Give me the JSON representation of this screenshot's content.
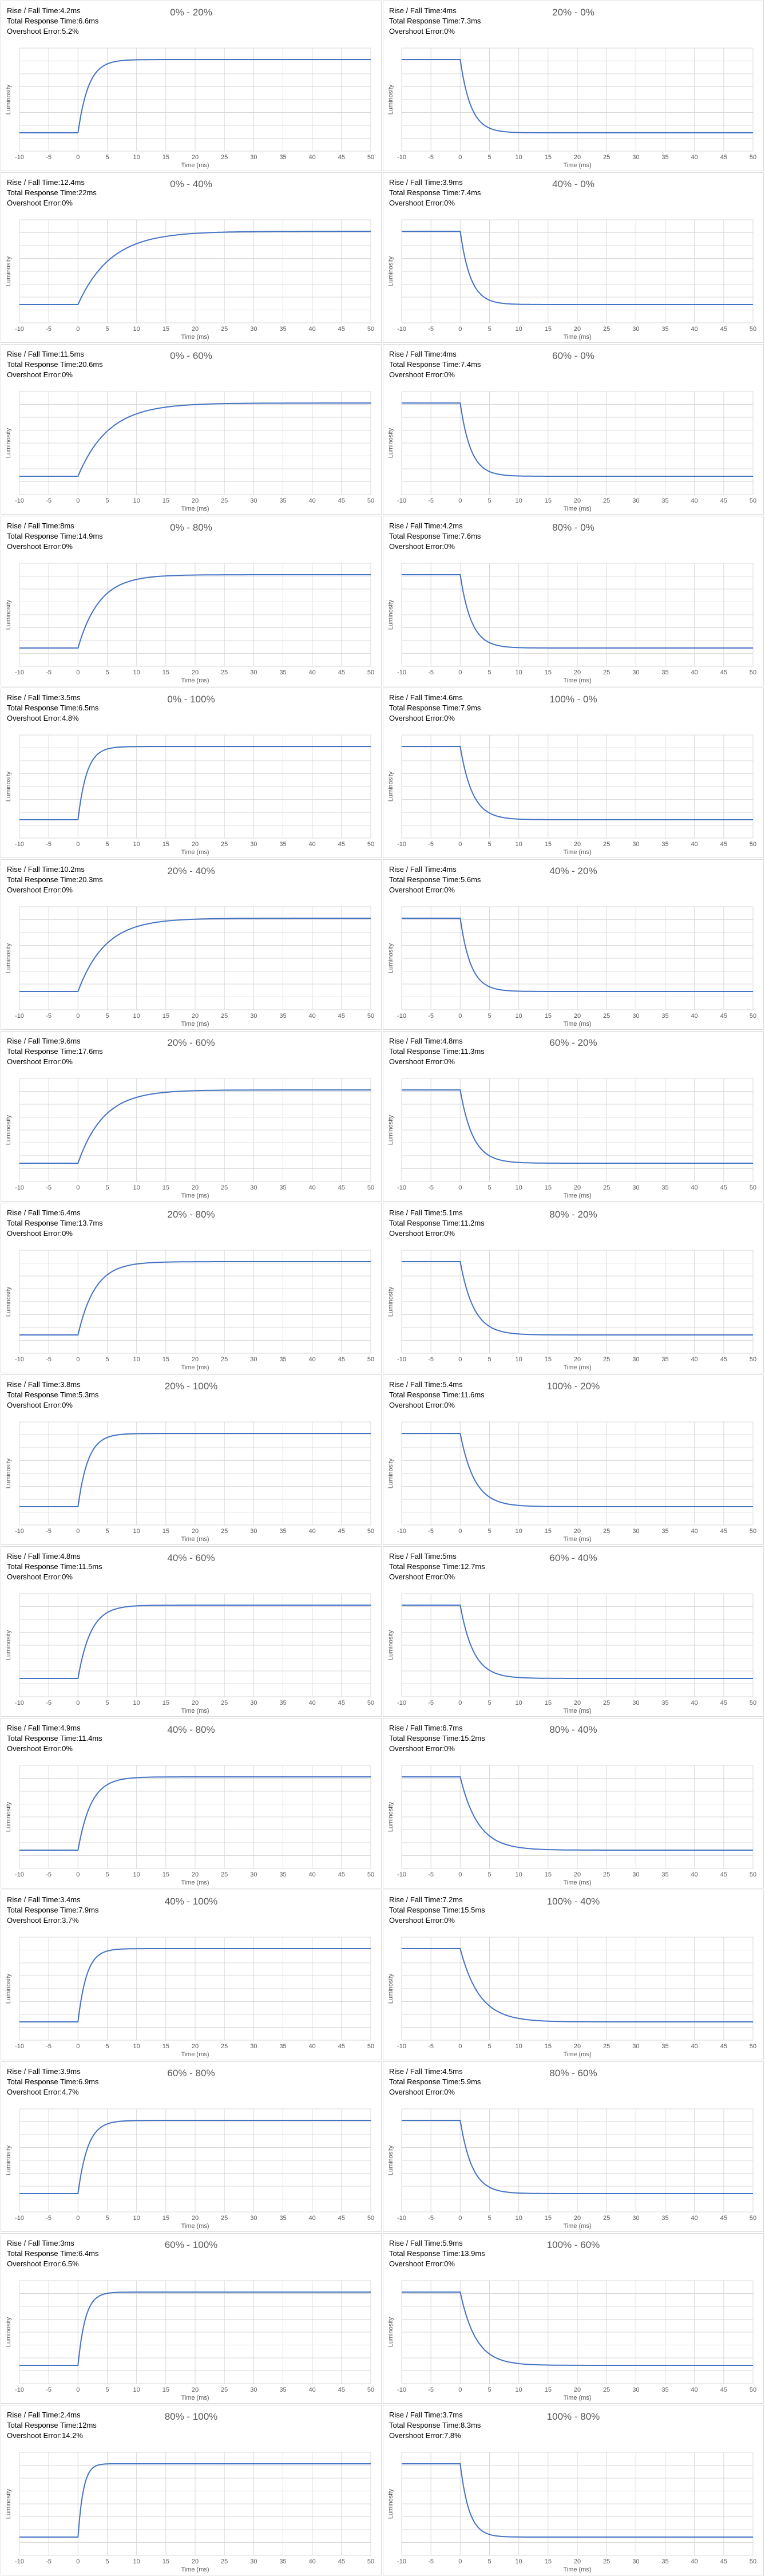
{
  "labels": {
    "rise_fall": "Rise / Fall Time:",
    "total": "Total Response Time:",
    "overshoot": "Overshoot Error:"
  },
  "colors": {
    "line": "#4472c4",
    "grid": "#d9d9d9",
    "tick_text": "#595959",
    "title": "#595959"
  },
  "chart_data": [
    {
      "type": "line",
      "title": "0% - 20%",
      "rise_fall": "4.2ms",
      "total": "6.6ms",
      "overshoot": "5.2%",
      "direction": "rise",
      "xlabel": "Time (ms)",
      "ylabel": "Luminosity",
      "xlim": [
        -10,
        50
      ],
      "x_ticks": [
        -10,
        -5,
        0,
        5,
        10,
        15,
        20,
        25,
        30,
        35,
        40,
        45,
        50
      ]
    },
    {
      "type": "line",
      "title": "20% - 0%",
      "rise_fall": "4ms",
      "total": "7.3ms",
      "overshoot": "0%",
      "direction": "fall",
      "xlabel": "Time (ms)",
      "ylabel": "Luminosity",
      "xlim": [
        -10,
        50
      ],
      "x_ticks": [
        -10,
        -5,
        0,
        5,
        10,
        15,
        20,
        25,
        30,
        35,
        40,
        45,
        50
      ]
    },
    {
      "type": "line",
      "title": "0% - 40%",
      "rise_fall": "12.4ms",
      "total": "22ms",
      "overshoot": "0%",
      "direction": "rise",
      "xlabel": "Time (ms)",
      "ylabel": "Luminosity",
      "xlim": [
        -10,
        50
      ],
      "x_ticks": [
        -10,
        -5,
        0,
        5,
        10,
        15,
        20,
        25,
        30,
        35,
        40,
        45,
        50
      ]
    },
    {
      "type": "line",
      "title": "40% - 0%",
      "rise_fall": "3.9ms",
      "total": "7.4ms",
      "overshoot": "0%",
      "direction": "fall",
      "xlabel": "Time (ms)",
      "ylabel": "Luminosity",
      "xlim": [
        -10,
        50
      ],
      "x_ticks": [
        -10,
        -5,
        0,
        5,
        10,
        15,
        20,
        25,
        30,
        35,
        40,
        45,
        50
      ]
    },
    {
      "type": "line",
      "title": "0% - 60%",
      "rise_fall": "11.5ms",
      "total": "20.6ms",
      "overshoot": "0%",
      "direction": "rise",
      "xlabel": "Time (ms)",
      "ylabel": "Luminosity",
      "xlim": [
        -10,
        50
      ],
      "x_ticks": [
        -10,
        -5,
        0,
        5,
        10,
        15,
        20,
        25,
        30,
        35,
        40,
        45,
        50
      ]
    },
    {
      "type": "line",
      "title": "60% - 0%",
      "rise_fall": "4ms",
      "total": "7.4ms",
      "overshoot": "0%",
      "direction": "fall",
      "xlabel": "Time (ms)",
      "ylabel": "Luminosity",
      "xlim": [
        -10,
        50
      ],
      "x_ticks": [
        -10,
        -5,
        0,
        5,
        10,
        15,
        20,
        25,
        30,
        35,
        40,
        45,
        50
      ]
    },
    {
      "type": "line",
      "title": "0% - 80%",
      "rise_fall": "8ms",
      "total": "14.9ms",
      "overshoot": "0%",
      "direction": "rise",
      "xlabel": "Time (ms)",
      "ylabel": "Luminosity",
      "xlim": [
        -10,
        50
      ],
      "x_ticks": [
        -10,
        -5,
        0,
        5,
        10,
        15,
        20,
        25,
        30,
        35,
        40,
        45,
        50
      ]
    },
    {
      "type": "line",
      "title": "80% - 0%",
      "rise_fall": "4.2ms",
      "total": "7.6ms",
      "overshoot": "0%",
      "direction": "fall",
      "xlabel": "Time (ms)",
      "ylabel": "Luminosity",
      "xlim": [
        -10,
        50
      ],
      "x_ticks": [
        -10,
        -5,
        0,
        5,
        10,
        15,
        20,
        25,
        30,
        35,
        40,
        45,
        50
      ]
    },
    {
      "type": "line",
      "title": "0% - 100%",
      "rise_fall": "3.5ms",
      "total": "6.5ms",
      "overshoot": "4.8%",
      "direction": "rise",
      "xlabel": "Time (ms)",
      "ylabel": "Luminosity",
      "xlim": [
        -10,
        50
      ],
      "x_ticks": [
        -10,
        -5,
        0,
        5,
        10,
        15,
        20,
        25,
        30,
        35,
        40,
        45,
        50
      ]
    },
    {
      "type": "line",
      "title": "100% - 0%",
      "rise_fall": "4.6ms",
      "total": "7.9ms",
      "overshoot": "0%",
      "direction": "fall",
      "xlabel": "Time (ms)",
      "ylabel": "Luminosity",
      "xlim": [
        -10,
        50
      ],
      "x_ticks": [
        -10,
        -5,
        0,
        5,
        10,
        15,
        20,
        25,
        30,
        35,
        40,
        45,
        50
      ]
    },
    {
      "type": "line",
      "title": "20% - 40%",
      "rise_fall": "10.2ms",
      "total": "20.3ms",
      "overshoot": "0%",
      "direction": "rise",
      "xlabel": "Time (ms)",
      "ylabel": "Luminosity",
      "xlim": [
        -10,
        50
      ],
      "x_ticks": [
        -10,
        -5,
        0,
        5,
        10,
        15,
        20,
        25,
        30,
        35,
        40,
        45,
        50
      ]
    },
    {
      "type": "line",
      "title": "40% - 20%",
      "rise_fall": "4ms",
      "total": "5.6ms",
      "overshoot": "0%",
      "direction": "fall",
      "xlabel": "Time (ms)",
      "ylabel": "Luminosity",
      "xlim": [
        -10,
        50
      ],
      "x_ticks": [
        -10,
        -5,
        0,
        5,
        10,
        15,
        20,
        25,
        30,
        35,
        40,
        45,
        50
      ]
    },
    {
      "type": "line",
      "title": "20% - 60%",
      "rise_fall": "9.6ms",
      "total": "17.6ms",
      "overshoot": "0%",
      "direction": "rise",
      "xlabel": "Time (ms)",
      "ylabel": "Luminosity",
      "xlim": [
        -10,
        50
      ],
      "x_ticks": [
        -10,
        -5,
        0,
        5,
        10,
        15,
        20,
        25,
        30,
        35,
        40,
        45,
        50
      ]
    },
    {
      "type": "line",
      "title": "60% - 20%",
      "rise_fall": "4.8ms",
      "total": "11.3ms",
      "overshoot": "0%",
      "direction": "fall",
      "xlabel": "Time (ms)",
      "ylabel": "Luminosity",
      "xlim": [
        -10,
        50
      ],
      "x_ticks": [
        -10,
        -5,
        0,
        5,
        10,
        15,
        20,
        25,
        30,
        35,
        40,
        45,
        50
      ]
    },
    {
      "type": "line",
      "title": "20% - 80%",
      "rise_fall": "6.4ms",
      "total": "13.7ms",
      "overshoot": "0%",
      "direction": "rise",
      "xlabel": "Time (ms)",
      "ylabel": "Luminosity",
      "xlim": [
        -10,
        50
      ],
      "x_ticks": [
        -10,
        -5,
        0,
        5,
        10,
        15,
        20,
        25,
        30,
        35,
        40,
        45,
        50
      ]
    },
    {
      "type": "line",
      "title": "80% - 20%",
      "rise_fall": "5.1ms",
      "total": "11.2ms",
      "overshoot": "0%",
      "direction": "fall",
      "xlabel": "Time (ms)",
      "ylabel": "Luminosity",
      "xlim": [
        -10,
        50
      ],
      "x_ticks": [
        -10,
        -5,
        0,
        5,
        10,
        15,
        20,
        25,
        30,
        35,
        40,
        45,
        50
      ]
    },
    {
      "type": "line",
      "title": "20% - 100%",
      "rise_fall": "3.8ms",
      "total": "5.3ms",
      "overshoot": "0%",
      "direction": "rise",
      "xlabel": "Time (ms)",
      "ylabel": "Luminosity",
      "xlim": [
        -10,
        50
      ],
      "x_ticks": [
        -10,
        -5,
        0,
        5,
        10,
        15,
        20,
        25,
        30,
        35,
        40,
        45,
        50
      ]
    },
    {
      "type": "line",
      "title": "100% - 20%",
      "rise_fall": "5.4ms",
      "total": "11.6ms",
      "overshoot": "0%",
      "direction": "fall",
      "xlabel": "Time (ms)",
      "ylabel": "Luminosity",
      "xlim": [
        -10,
        50
      ],
      "x_ticks": [
        -10,
        -5,
        0,
        5,
        10,
        15,
        20,
        25,
        30,
        35,
        40,
        45,
        50
      ]
    },
    {
      "type": "line",
      "title": "40% - 60%",
      "rise_fall": "4.8ms",
      "total": "11.5ms",
      "overshoot": "0%",
      "direction": "rise",
      "xlabel": "Time (ms)",
      "ylabel": "Luminosity",
      "xlim": [
        -10,
        50
      ],
      "x_ticks": [
        -10,
        -5,
        0,
        5,
        10,
        15,
        20,
        25,
        30,
        35,
        40,
        45,
        50
      ]
    },
    {
      "type": "line",
      "title": "60% - 40%",
      "rise_fall": "5ms",
      "total": "12.7ms",
      "overshoot": "0%",
      "direction": "fall",
      "xlabel": "Time (ms)",
      "ylabel": "Luminosity",
      "xlim": [
        -10,
        50
      ],
      "x_ticks": [
        -10,
        -5,
        0,
        5,
        10,
        15,
        20,
        25,
        30,
        35,
        40,
        45,
        50
      ]
    },
    {
      "type": "line",
      "title": "40% - 80%",
      "rise_fall": "4.9ms",
      "total": "11.4ms",
      "overshoot": "0%",
      "direction": "rise",
      "xlabel": "Time (ms)",
      "ylabel": "Luminosity",
      "xlim": [
        -10,
        50
      ],
      "x_ticks": [
        -10,
        -5,
        0,
        5,
        10,
        15,
        20,
        25,
        30,
        35,
        40,
        45,
        50
      ]
    },
    {
      "type": "line",
      "title": "80% - 40%",
      "rise_fall": "6.7ms",
      "total": "15.2ms",
      "overshoot": "0%",
      "direction": "fall",
      "xlabel": "Time (ms)",
      "ylabel": "Luminosity",
      "xlim": [
        -10,
        50
      ],
      "x_ticks": [
        -10,
        -5,
        0,
        5,
        10,
        15,
        20,
        25,
        30,
        35,
        40,
        45,
        50
      ]
    },
    {
      "type": "line",
      "title": "40% - 100%",
      "rise_fall": "3.4ms",
      "total": "7.9ms",
      "overshoot": "3.7%",
      "direction": "rise",
      "xlabel": "Time (ms)",
      "ylabel": "Luminosity",
      "xlim": [
        -10,
        50
      ],
      "x_ticks": [
        -10,
        -5,
        0,
        5,
        10,
        15,
        20,
        25,
        30,
        35,
        40,
        45,
        50
      ]
    },
    {
      "type": "line",
      "title": "100% - 40%",
      "rise_fall": "7.2ms",
      "total": "15.5ms",
      "overshoot": "0%",
      "direction": "fall",
      "xlabel": "Time (ms)",
      "ylabel": "Luminosity",
      "xlim": [
        -10,
        50
      ],
      "x_ticks": [
        -10,
        -5,
        0,
        5,
        10,
        15,
        20,
        25,
        30,
        35,
        40,
        45,
        50
      ]
    },
    {
      "type": "line",
      "title": "60% - 80%",
      "rise_fall": "3.9ms",
      "total": "6.9ms",
      "overshoot": "4.7%",
      "direction": "rise",
      "xlabel": "Time (ms)",
      "ylabel": "Luminosity",
      "xlim": [
        -10,
        50
      ],
      "x_ticks": [
        -10,
        -5,
        0,
        5,
        10,
        15,
        20,
        25,
        30,
        35,
        40,
        45,
        50
      ]
    },
    {
      "type": "line",
      "title": "80% - 60%",
      "rise_fall": "4.5ms",
      "total": "5.9ms",
      "overshoot": "0%",
      "direction": "fall",
      "xlabel": "Time (ms)",
      "ylabel": "Luminosity",
      "xlim": [
        -10,
        50
      ],
      "x_ticks": [
        -10,
        -5,
        0,
        5,
        10,
        15,
        20,
        25,
        30,
        35,
        40,
        45,
        50
      ]
    },
    {
      "type": "line",
      "title": "60% - 100%",
      "rise_fall": "3ms",
      "total": "6.4ms",
      "overshoot": "6.5%",
      "direction": "rise",
      "xlabel": "Time (ms)",
      "ylabel": "Luminosity",
      "xlim": [
        -10,
        50
      ],
      "x_ticks": [
        -10,
        -5,
        0,
        5,
        10,
        15,
        20,
        25,
        30,
        35,
        40,
        45,
        50
      ]
    },
    {
      "type": "line",
      "title": "100% - 60%",
      "rise_fall": "5.9ms",
      "total": "13.9ms",
      "overshoot": "0%",
      "direction": "fall",
      "xlabel": "Time (ms)",
      "ylabel": "Luminosity",
      "xlim": [
        -10,
        50
      ],
      "x_ticks": [
        -10,
        -5,
        0,
        5,
        10,
        15,
        20,
        25,
        30,
        35,
        40,
        45,
        50
      ]
    },
    {
      "type": "line",
      "title": "80% - 100%",
      "rise_fall": "2.4ms",
      "total": "12ms",
      "overshoot": "14.2%",
      "direction": "rise",
      "xlabel": "Time (ms)",
      "ylabel": "Luminosity",
      "xlim": [
        -10,
        50
      ],
      "x_ticks": [
        -10,
        -5,
        0,
        5,
        10,
        15,
        20,
        25,
        30,
        35,
        40,
        45,
        50
      ]
    },
    {
      "type": "line",
      "title": "100% - 80%",
      "rise_fall": "3.7ms",
      "total": "8.3ms",
      "overshoot": "7.8%",
      "direction": "fall",
      "xlabel": "Time (ms)",
      "ylabel": "Luminosity",
      "xlim": [
        -10,
        50
      ],
      "x_ticks": [
        -10,
        -5,
        0,
        5,
        10,
        15,
        20,
        25,
        30,
        35,
        40,
        45,
        50
      ]
    }
  ]
}
